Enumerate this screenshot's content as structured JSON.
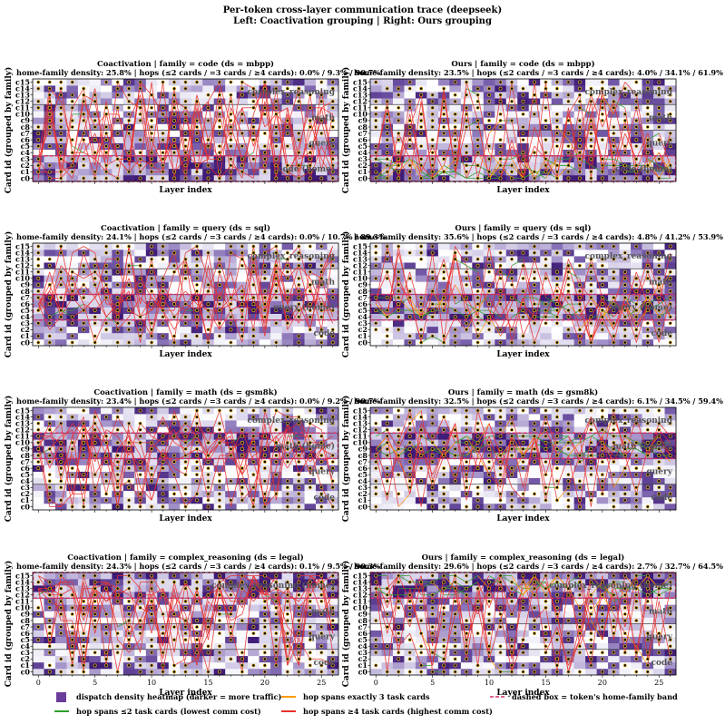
{
  "figure": {
    "title_line1": "Per-token cross-layer communication trace (deepseek)",
    "title_line2": "Left: Coactivation grouping  |  Right: Ours grouping",
    "xlabel": "Layer index",
    "ylabel": "Card id (grouped by family)",
    "card_labels": [
      "c0",
      "c1",
      "c2",
      "c3",
      "c4",
      "c5",
      "c6",
      "c7",
      "c8",
      "c9",
      "c10",
      "c11",
      "c12",
      "c13",
      "c14",
      "c15"
    ],
    "x_ticks": [
      0,
      5,
      10,
      15,
      20,
      25
    ],
    "family_labels": [
      {
        "name": "code",
        "card": 1.5
      },
      {
        "name": "query",
        "card": 5.5
      },
      {
        "name": "math",
        "card": 9.5
      },
      {
        "name": "complex_reasoning",
        "card": 13.5
      }
    ],
    "colors": {
      "heat": "#6a3d9a",
      "hop_le2": "#2ca02c",
      "hop_eq3": "#ff9900",
      "hop_ge4": "#e8302a",
      "home_band": "#d6336c"
    }
  },
  "legend": [
    {
      "key": "heat",
      "label": "dispatch density heatmap (darker = more traffic)"
    },
    {
      "key": "hop_le2",
      "label": "hop spans ≤2 task cards (lowest comm cost)"
    },
    {
      "key": "hop_eq3",
      "label": "hop spans exactly 3 task cards"
    },
    {
      "key": "hop_ge4",
      "label": "hop spans ≥4 task cards (highest comm cost)"
    },
    {
      "key": "home_band",
      "label": "dashed box = token's home-family band"
    }
  ],
  "chart_data": [
    {
      "type": "heatmap",
      "grouping": "Coactivation",
      "family": "code",
      "ds": "mbpp",
      "title": "Coactivation | family = code (ds = mbpp)",
      "stats": "home-family density: 25.8%    |    hops (≤2 cards / =3 cards / ≥4 cards): 0.0% / 9.3% / 90.7%",
      "home_density": 25.8,
      "hops_le2": 0.0,
      "hops_eq3": 9.3,
      "hops_ge4": 90.7,
      "home_band": [
        0,
        3
      ],
      "home_label": "code (home)",
      "home_label_card": 1.5,
      "xlim": [
        -0.5,
        26.5
      ],
      "ylim": [
        -0.5,
        15.5
      ],
      "seed": 11
    },
    {
      "type": "heatmap",
      "grouping": "Ours",
      "family": "code",
      "ds": "mbpp",
      "title": "Ours | family = code (ds = mbpp)",
      "stats": "home-family density: 23.5%    |    hops (≤2 cards / =3 cards / ≥4 cards): 4.0% / 34.1% / 61.9%",
      "home_density": 23.5,
      "hops_le2": 4.0,
      "hops_eq3": 34.1,
      "hops_ge4": 61.9,
      "home_band": [
        0,
        3
      ],
      "home_label": "code (home)",
      "home_label_card": 1.5,
      "xlim": [
        -0.5,
        26.5
      ],
      "ylim": [
        -0.5,
        15.5
      ],
      "seed": 23
    },
    {
      "type": "heatmap",
      "grouping": "Coactivation",
      "family": "query",
      "ds": "sql",
      "title": "Coactivation | family = query (ds = sql)",
      "stats": "home-family density: 24.1%    |    hops (≤2 cards / =3 cards / ≥4 cards): 0.0% / 10.7% / 89.3%",
      "home_density": 24.1,
      "hops_le2": 0.0,
      "hops_eq3": 10.7,
      "hops_ge4": 89.3,
      "home_band": [
        4,
        7
      ],
      "home_label": "query (home)",
      "home_label_card": 5.5,
      "xlim": [
        -0.5,
        26.5
      ],
      "ylim": [
        -0.5,
        15.5
      ],
      "seed": 37
    },
    {
      "type": "heatmap",
      "grouping": "Ours",
      "family": "query",
      "ds": "sql",
      "title": "Ours | family = query (ds = sql)",
      "stats": "home-family density: 35.6%    |    hops (≤2 cards / =3 cards / ≥4 cards): 4.8% / 41.2% / 53.9%",
      "home_density": 35.6,
      "hops_le2": 4.8,
      "hops_eq3": 41.2,
      "hops_ge4": 53.9,
      "home_band": [
        4,
        7
      ],
      "home_label": "query (home)",
      "home_label_card": 5.5,
      "xlim": [
        -0.5,
        26.5
      ],
      "ylim": [
        -0.5,
        15.5
      ],
      "seed": 41
    },
    {
      "type": "heatmap",
      "grouping": "Coactivation",
      "family": "math",
      "ds": "gsm8k",
      "title": "Coactivation | family = math (ds = gsm8k)",
      "stats": "home-family density: 23.4%    |    hops (≤2 cards / =3 cards / ≥4 cards): 0.0% / 9.2% / 90.7%",
      "home_density": 23.4,
      "hops_le2": 0.0,
      "hops_eq3": 9.2,
      "hops_ge4": 90.7,
      "home_band": [
        8,
        11
      ],
      "home_label": "math (home)",
      "home_label_card": 9.5,
      "xlim": [
        -0.5,
        26.5
      ],
      "ylim": [
        -0.5,
        15.5
      ],
      "seed": 53
    },
    {
      "type": "heatmap",
      "grouping": "Ours",
      "family": "math",
      "ds": "gsm8k",
      "title": "Ours | family = math (ds = gsm8k)",
      "stats": "home-family density: 32.5%    |    hops (≤2 cards / =3 cards / ≥4 cards): 6.1% / 34.5% / 59.4%",
      "home_density": 32.5,
      "hops_le2": 6.1,
      "hops_eq3": 34.5,
      "hops_ge4": 59.4,
      "home_band": [
        8,
        11
      ],
      "home_label": "math (home)",
      "home_label_card": 9.5,
      "xlim": [
        -0.5,
        26.5
      ],
      "ylim": [
        -0.5,
        15.5
      ],
      "seed": 67
    },
    {
      "type": "heatmap",
      "grouping": "Coactivation",
      "family": "complex_reasoning",
      "ds": "legal",
      "title": "Coactivation | family = complex_reasoning (ds = legal)",
      "stats": "home-family density: 24.3%    |    hops (≤2 cards / =3 cards / ≥4 cards): 0.1% / 9.5% / 90.3%",
      "home_density": 24.3,
      "hops_le2": 0.1,
      "hops_eq3": 9.5,
      "hops_ge4": 90.3,
      "home_band": [
        12,
        15
      ],
      "home_label": "complex_reasoning (home)",
      "home_label_card": 13.5,
      "xlim": [
        -0.5,
        26.5
      ],
      "ylim": [
        -0.5,
        15.5
      ],
      "seed": 71
    },
    {
      "type": "heatmap",
      "grouping": "Ours",
      "family": "complex_reasoning",
      "ds": "legal",
      "title": "Ours | family = complex_reasoning (ds = legal)",
      "stats": "home-family density: 29.6%    |    hops (≤2 cards / =3 cards / ≥4 cards): 2.7% / 32.7% / 64.5%",
      "home_density": 29.6,
      "hops_le2": 2.7,
      "hops_eq3": 32.7,
      "hops_ge4": 64.5,
      "home_band": [
        12,
        15
      ],
      "home_label": "complex_reasoning (home)",
      "home_label_card": 13.5,
      "xlim": [
        -0.5,
        26.5
      ],
      "ylim": [
        -0.5,
        15.5
      ],
      "seed": 83
    }
  ]
}
